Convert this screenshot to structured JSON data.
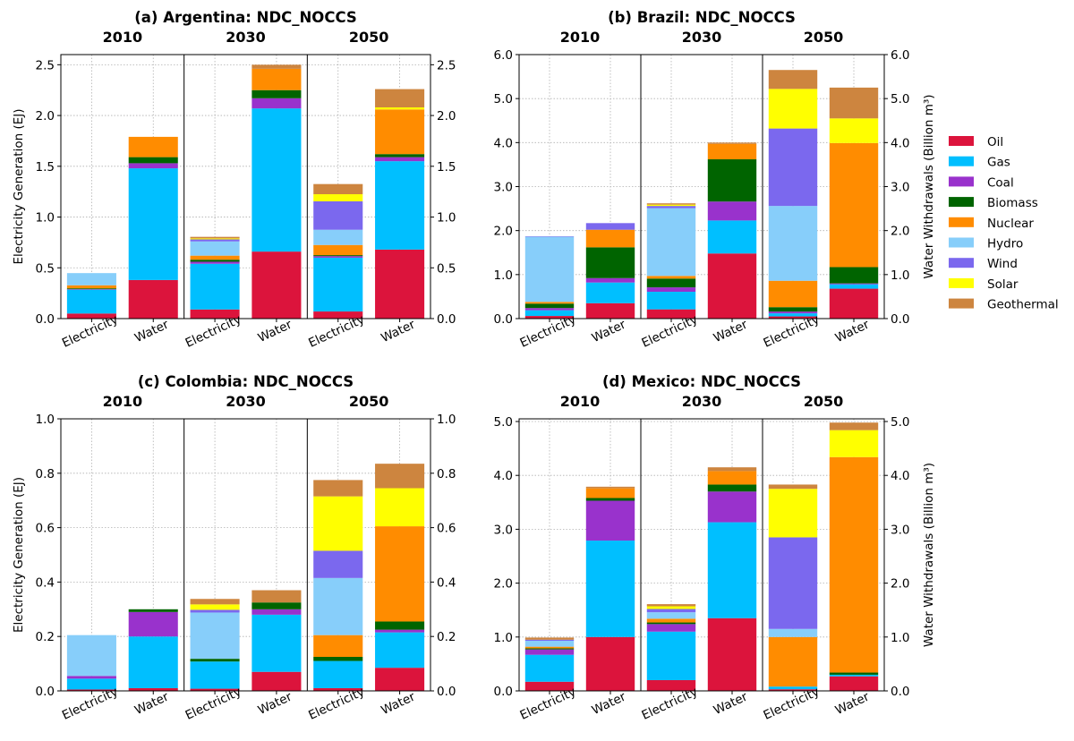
{
  "chart_data": {
    "type": "bar",
    "stacked": true,
    "years": [
      "2010",
      "2030",
      "2050"
    ],
    "categories": [
      "Electricity",
      "Water"
    ],
    "left_ylabel": "Electricity Generation (EJ)",
    "right_ylabel": "Water Withdrawals (Billion m³)",
    "grid": true,
    "legend_position": "right",
    "legend": [
      "Oil",
      "Gas",
      "Coal",
      "Biomass",
      "Nuclear",
      "Hydro",
      "Wind",
      "Solar",
      "Geothermal"
    ],
    "colors": {
      "Oil": "#dc143c",
      "Gas": "#00bfff",
      "Coal": "#9932cc",
      "Biomass": "#006400",
      "Nuclear": "#ff8c00",
      "Hydro": "#87cefa",
      "Wind": "#7b68ee",
      "Solar": "#ffff00",
      "Geothermal": "#cd853f"
    },
    "panels": [
      {
        "title": "(a) Argentina: NDC_NOCCS",
        "ylim": [
          0,
          2.6
        ],
        "ticks": [
          0.0,
          0.5,
          1.0,
          1.5,
          2.0,
          2.5
        ],
        "tick_labels": [
          "0.0",
          "0.5",
          "1.0",
          "1.5",
          "2.0",
          "2.5"
        ],
        "bars": [
          {
            "year": "2010",
            "type": "Electricity",
            "values": {
              "Oil": 0.05,
              "Gas": 0.235,
              "Coal": 0.005,
              "Biomass": 0.008,
              "Nuclear": 0.03,
              "Hydro": 0.12
            }
          },
          {
            "year": "2010",
            "type": "Water",
            "values": {
              "Oil": 0.38,
              "Gas": 1.1,
              "Coal": 0.05,
              "Biomass": 0.06,
              "Nuclear": 0.2
            }
          },
          {
            "year": "2030",
            "type": "Electricity",
            "values": {
              "Oil": 0.09,
              "Gas": 0.45,
              "Coal": 0.02,
              "Biomass": 0.02,
              "Nuclear": 0.04,
              "Hydro": 0.14,
              "Wind": 0.02,
              "Solar": 0.01,
              "Geothermal": 0.015
            }
          },
          {
            "year": "2030",
            "type": "Water",
            "values": {
              "Oil": 0.66,
              "Gas": 1.41,
              "Coal": 0.1,
              "Biomass": 0.08,
              "Nuclear": 0.21,
              "Geothermal": 0.04
            }
          },
          {
            "year": "2050",
            "type": "Electricity",
            "values": {
              "Oil": 0.07,
              "Gas": 0.53,
              "Coal": 0.015,
              "Biomass": 0.01,
              "Nuclear": 0.1,
              "Hydro": 0.15,
              "Wind": 0.28,
              "Solar": 0.07,
              "Geothermal": 0.1
            }
          },
          {
            "year": "2050",
            "type": "Water",
            "values": {
              "Oil": 0.68,
              "Gas": 0.87,
              "Coal": 0.04,
              "Biomass": 0.03,
              "Nuclear": 0.44,
              "Solar": 0.02,
              "Geothermal": 0.18
            }
          }
        ]
      },
      {
        "title": "(b) Brazil: NDC_NOCCS",
        "ylim": [
          0,
          6.0
        ],
        "ticks": [
          0,
          1,
          2,
          3,
          4,
          5,
          6
        ],
        "tick_labels": [
          "0.0",
          "1.0",
          "2.0",
          "3.0",
          "4.0",
          "5.0",
          "6.0"
        ],
        "bars": [
          {
            "year": "2010",
            "type": "Electricity",
            "values": {
              "Oil": 0.06,
              "Gas": 0.13,
              "Coal": 0.05,
              "Biomass": 0.1,
              "Nuclear": 0.04,
              "Hydro": 1.48,
              "Wind": 0.01
            }
          },
          {
            "year": "2010",
            "type": "Water",
            "values": {
              "Oil": 0.35,
              "Gas": 0.47,
              "Coal": 0.1,
              "Biomass": 0.7,
              "Nuclear": 0.4,
              "Wind": 0.15
            }
          },
          {
            "year": "2030",
            "type": "Electricity",
            "values": {
              "Oil": 0.21,
              "Gas": 0.4,
              "Coal": 0.1,
              "Biomass": 0.2,
              "Nuclear": 0.06,
              "Hydro": 1.54,
              "Wind": 0.05,
              "Solar": 0.03,
              "Geothermal": 0.03
            }
          },
          {
            "year": "2030",
            "type": "Water",
            "values": {
              "Oil": 1.48,
              "Gas": 0.75,
              "Coal": 0.43,
              "Biomass": 0.96,
              "Nuclear": 0.35,
              "Geothermal": 0.03
            }
          },
          {
            "year": "2050",
            "type": "Electricity",
            "values": {
              "Oil": 0.05,
              "Gas": 0.07,
              "Coal": 0.04,
              "Biomass": 0.1,
              "Nuclear": 0.6,
              "Hydro": 1.7,
              "Wind": 1.76,
              "Solar": 0.9,
              "Geothermal": 0.43
            }
          },
          {
            "year": "2050",
            "type": "Water",
            "values": {
              "Oil": 0.68,
              "Gas": 0.1,
              "Coal": 0.02,
              "Biomass": 0.37,
              "Nuclear": 2.82,
              "Solar": 0.56,
              "Geothermal": 0.7
            }
          }
        ]
      },
      {
        "title": "(c) Colombia: NDC_NOCCS",
        "ylim": [
          0,
          1.0
        ],
        "ticks": [
          0.0,
          0.2,
          0.4,
          0.6,
          0.8,
          1.0
        ],
        "tick_labels": [
          "0.0",
          "0.2",
          "0.4",
          "0.6",
          "0.8",
          "1.0"
        ],
        "bars": [
          {
            "year": "2010",
            "type": "Electricity",
            "values": {
              "Oil": 0.005,
              "Gas": 0.04,
              "Coal": 0.01,
              "Hydro": 0.15
            }
          },
          {
            "year": "2010",
            "type": "Water",
            "values": {
              "Oil": 0.01,
              "Gas": 0.19,
              "Coal": 0.09,
              "Biomass": 0.01
            }
          },
          {
            "year": "2030",
            "type": "Electricity",
            "values": {
              "Oil": 0.008,
              "Gas": 0.1,
              "Biomass": 0.01,
              "Hydro": 0.17,
              "Wind": 0.01,
              "Solar": 0.02,
              "Geothermal": 0.02
            }
          },
          {
            "year": "2030",
            "type": "Water",
            "values": {
              "Oil": 0.07,
              "Gas": 0.21,
              "Coal": 0.02,
              "Biomass": 0.025,
              "Geothermal": 0.045
            }
          },
          {
            "year": "2050",
            "type": "Electricity",
            "values": {
              "Oil": 0.01,
              "Gas": 0.1,
              "Biomass": 0.015,
              "Nuclear": 0.08,
              "Hydro": 0.21,
              "Wind": 0.1,
              "Solar": 0.2,
              "Geothermal": 0.06
            }
          },
          {
            "year": "2050",
            "type": "Water",
            "values": {
              "Oil": 0.085,
              "Gas": 0.13,
              "Coal": 0.01,
              "Biomass": 0.03,
              "Nuclear": 0.35,
              "Solar": 0.14,
              "Geothermal": 0.09
            }
          }
        ]
      },
      {
        "title": "(d) Mexico: NDC_NOCCS",
        "ylim": [
          0,
          5.05
        ],
        "ticks": [
          0,
          1,
          2,
          3,
          4,
          5
        ],
        "tick_labels": [
          "0.0",
          "1.0",
          "2.0",
          "3.0",
          "4.0",
          "5.0"
        ],
        "bars": [
          {
            "year": "2010",
            "type": "Electricity",
            "values": {
              "Oil": 0.17,
              "Gas": 0.5,
              "Coal": 0.1,
              "Biomass": 0.02,
              "Nuclear": 0.03,
              "Hydro": 0.11,
              "Wind": 0.02,
              "Geothermal": 0.04
            }
          },
          {
            "year": "2010",
            "type": "Water",
            "values": {
              "Oil": 1.0,
              "Gas": 1.79,
              "Coal": 0.74,
              "Biomass": 0.05,
              "Nuclear": 0.18,
              "Geothermal": 0.03
            }
          },
          {
            "year": "2030",
            "type": "Electricity",
            "values": {
              "Oil": 0.2,
              "Gas": 0.9,
              "Coal": 0.14,
              "Biomass": 0.03,
              "Nuclear": 0.07,
              "Hydro": 0.12,
              "Wind": 0.06,
              "Solar": 0.05,
              "Geothermal": 0.04
            }
          },
          {
            "year": "2030",
            "type": "Water",
            "values": {
              "Oil": 1.35,
              "Gas": 1.78,
              "Coal": 0.57,
              "Biomass": 0.13,
              "Nuclear": 0.25,
              "Geothermal": 0.07
            }
          },
          {
            "year": "2050",
            "type": "Electricity",
            "values": {
              "Oil": 0.03,
              "Gas": 0.05,
              "Nuclear": 0.92,
              "Hydro": 0.15,
              "Wind": 1.7,
              "Solar": 0.9,
              "Geothermal": 0.08
            }
          },
          {
            "year": "2050",
            "type": "Water",
            "values": {
              "Oil": 0.27,
              "Gas": 0.03,
              "Biomass": 0.04,
              "Nuclear": 4.0,
              "Solar": 0.5,
              "Geothermal": 0.14
            }
          }
        ]
      }
    ]
  }
}
